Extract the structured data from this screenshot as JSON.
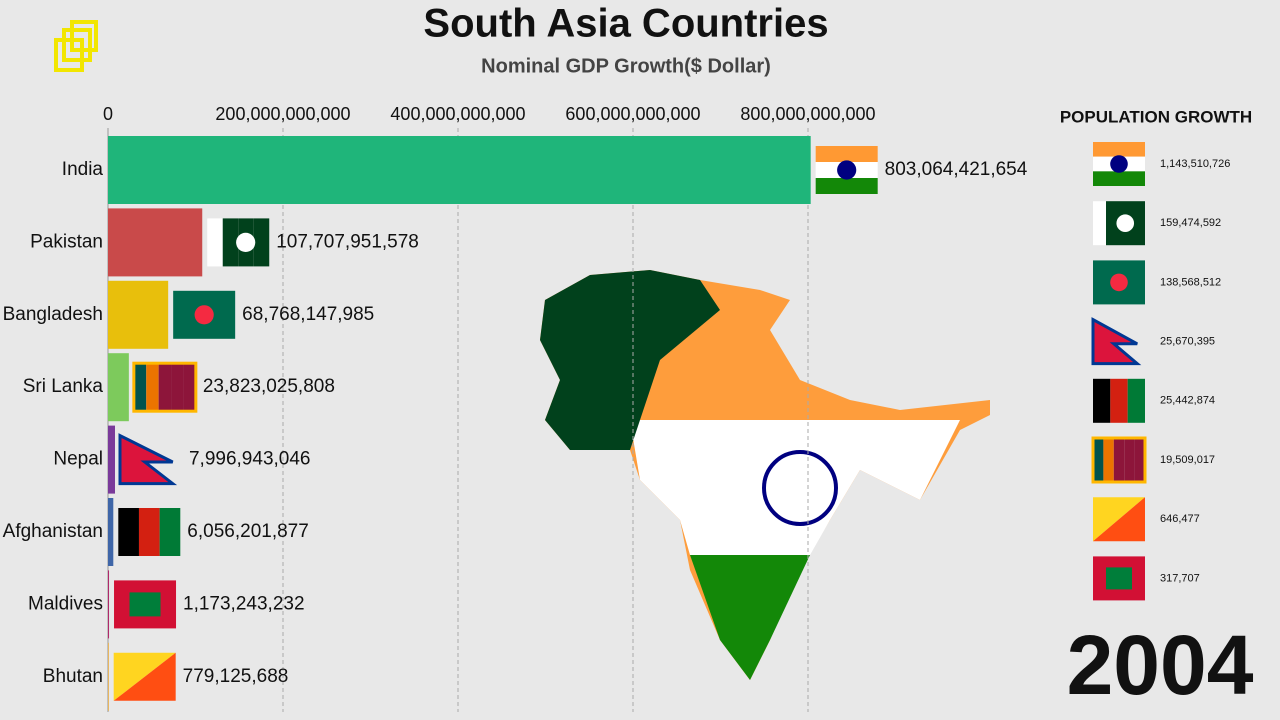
{
  "chart_data": {
    "type": "bar",
    "orientation": "horizontal",
    "title": "South Asia Countries",
    "subtitle": "Nominal GDP Growth($ Dollar)",
    "categories": [
      "India",
      "Pakistan",
      "Bangladesh",
      "Sri Lanka",
      "Nepal",
      "Afghanistan",
      "Maldives",
      "Bhutan"
    ],
    "values": [
      803064421654,
      107707951578,
      68768147985,
      23823025808,
      7996943046,
      6056201877,
      1173243232,
      779125688
    ],
    "value_labels": [
      "803,064,421,654",
      "107,707,951,578",
      "68,768,147,985",
      "23,823,025,808",
      "7,996,943,046",
      "6,056,201,877",
      "1,173,243,232",
      "779,125,688"
    ],
    "colors": [
      "#1fb57a",
      "#c94a4a",
      "#e8bf0c",
      "#7dca5c",
      "#7a3a9a",
      "#3f66a8",
      "#b0286a",
      "#e8a020"
    ],
    "xlim": [
      0,
      1000000000000
    ],
    "xticks": [
      0,
      {
        "value": 200000000000,
        "label": "200,000,000,000"
      },
      {
        "value": 400000000000,
        "label": "400,000,000,000"
      },
      {
        "value": 600000000000,
        "label": "600,000,000,000"
      },
      {
        "value": 800000000000,
        "label": "800,000,000,000"
      }
    ],
    "grid": true
  },
  "population": {
    "title": "POPULATION GROWTH",
    "labels": [
      "1,143,510,726",
      "159,474,592",
      "138,568,512",
      "25,670,395",
      "25,442,874",
      "19,509,017",
      "646,477",
      "317,707"
    ]
  },
  "year": "2004"
}
